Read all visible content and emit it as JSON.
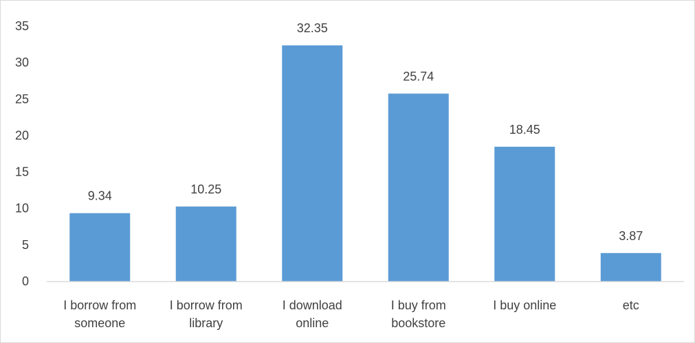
{
  "chart_data": {
    "type": "bar",
    "categories": [
      [
        "I borrow from",
        "someone"
      ],
      [
        "I borrow from",
        "library"
      ],
      [
        "I download",
        "online"
      ],
      [
        "I buy from",
        "bookstore"
      ],
      [
        "I buy online"
      ],
      [
        "etc"
      ]
    ],
    "values": [
      9.34,
      10.25,
      32.35,
      25.74,
      18.45,
      3.87
    ],
    "data_labels": [
      "9.34",
      "10.25",
      "32.35",
      "25.74",
      "18.45",
      "3.87"
    ],
    "title": "",
    "xlabel": "",
    "ylabel": "",
    "ylim": [
      0,
      35
    ],
    "yticks": [
      0,
      5,
      10,
      15,
      20,
      25,
      30,
      35
    ],
    "grid": false,
    "legend": "none",
    "bar_color": "#5b9bd5",
    "axis_color": "#d9d9d9",
    "text_color": "#404040"
  }
}
